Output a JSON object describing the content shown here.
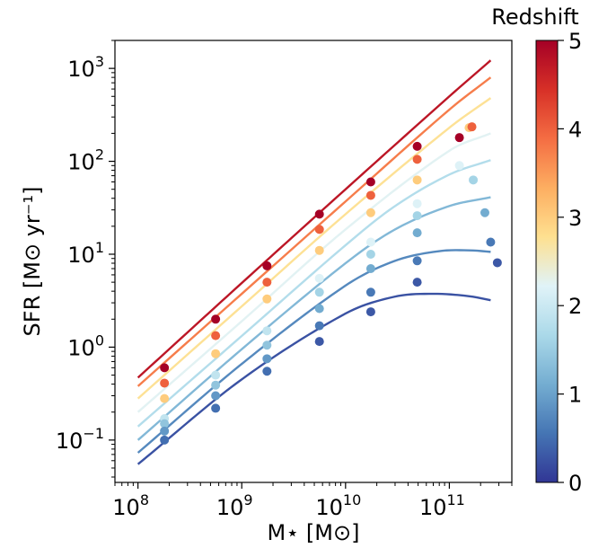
{
  "chart_data": {
    "type": "scatter",
    "xlabel": "M⋆ [M⊙]",
    "ylabel": "SFR [M⊙ yr⁻¹]",
    "x_scale": "log",
    "y_scale": "log",
    "xlim": [
      60000000.0,
      400000000000.0
    ],
    "ylim": [
      0.035,
      2000
    ],
    "x_ticks": [
      {
        "exp": "8",
        "value": 100000000.0
      },
      {
        "exp": "9",
        "value": 1000000000.0
      },
      {
        "exp": "10",
        "value": 10000000000.0
      },
      {
        "exp": "11",
        "value": 100000000000.0
      }
    ],
    "y_ticks": [
      {
        "exp": "−1",
        "value": 0.1
      },
      {
        "exp": "0",
        "value": 1
      },
      {
        "exp": "1",
        "value": 10
      },
      {
        "exp": "2",
        "value": 100
      },
      {
        "exp": "3",
        "value": 1000
      }
    ],
    "grid": false,
    "colorbar": {
      "title": "Redshift",
      "min": 0,
      "max": 5,
      "ticks": [
        "0",
        "1",
        "2",
        "3",
        "4",
        "5"
      ],
      "colormap": [
        "#313695",
        "#4575b4",
        "#74add1",
        "#abd9e9",
        "#e0f3f8",
        "#fee090",
        "#fdae61",
        "#f46d43",
        "#d73027",
        "#a50026"
      ]
    },
    "curves": [
      {
        "z": 0.25,
        "points": [
          [
            100000000.0,
            0.055
          ],
          [
            1000000000.0,
            0.45
          ],
          [
            10000000000.0,
            2.3
          ],
          [
            30000000000.0,
            3.5
          ],
          [
            70000000000.0,
            3.75
          ],
          [
            150000000000.0,
            3.55
          ],
          [
            250000000000.0,
            3.2
          ]
        ]
      },
      {
        "z": 0.75,
        "points": [
          [
            100000000.0,
            0.073
          ],
          [
            1000000000.0,
            0.66
          ],
          [
            10000000000.0,
            4.6
          ],
          [
            30000000000.0,
            8.5
          ],
          [
            80000000000.0,
            10.8
          ],
          [
            160000000000.0,
            11.0
          ],
          [
            250000000000.0,
            10.6
          ]
        ]
      },
      {
        "z": 1.25,
        "points": [
          [
            100000000.0,
            0.1
          ],
          [
            1000000000.0,
            0.95
          ],
          [
            10000000000.0,
            8.0
          ],
          [
            30000000000.0,
            18.5
          ],
          [
            100000000000.0,
            33
          ],
          [
            250000000000.0,
            41
          ]
        ]
      },
      {
        "z": 1.75,
        "points": [
          [
            100000000.0,
            0.14
          ],
          [
            1000000000.0,
            1.32
          ],
          [
            10000000000.0,
            12.5
          ],
          [
            30000000000.0,
            33
          ],
          [
            100000000000.0,
            72
          ],
          [
            250000000000.0,
            103
          ]
        ]
      },
      {
        "z": 2.25,
        "points": [
          [
            100000000.0,
            0.2
          ],
          [
            1000000000.0,
            1.9
          ],
          [
            10000000000.0,
            18.5
          ],
          [
            100000000000.0,
            130
          ],
          [
            250000000000.0,
            200
          ]
        ]
      },
      {
        "z": 2.75,
        "points": [
          [
            100000000.0,
            0.28
          ],
          [
            1000000000.0,
            2.75
          ],
          [
            10000000000.0,
            27
          ],
          [
            100000000000.0,
            230
          ],
          [
            250000000000.0,
            480
          ]
        ]
      },
      {
        "z": 3.75,
        "points": [
          [
            100000000.0,
            0.38
          ],
          [
            1000000000.0,
            3.75
          ],
          [
            10000000000.0,
            37
          ],
          [
            100000000000.0,
            360
          ],
          [
            250000000000.0,
            800
          ]
        ]
      },
      {
        "z": 4.75,
        "points": [
          [
            100000000.0,
            0.47
          ],
          [
            1000000000.0,
            4.9
          ],
          [
            10000000000.0,
            50
          ],
          [
            100000000000.0,
            500
          ],
          [
            250000000000.0,
            1220
          ]
        ]
      }
    ],
    "points": [
      {
        "x": 180000000.0,
        "y": 0.6,
        "z": 5.0
      },
      {
        "x": 180000000.0,
        "y": 0.41,
        "z": 4.0
      },
      {
        "x": 180000000.0,
        "y": 0.28,
        "z": 3.0
      },
      {
        "x": 180000000.0,
        "y": 0.17,
        "z": 1.9
      },
      {
        "x": 180000000.0,
        "y": 0.15,
        "z": 1.4
      },
      {
        "x": 180000000.0,
        "y": 0.125,
        "z": 0.9
      },
      {
        "x": 180000000.0,
        "y": 0.1,
        "z": 0.5
      },
      {
        "x": 560000000.0,
        "y": 2.0,
        "z": 5.0
      },
      {
        "x": 560000000.0,
        "y": 1.33,
        "z": 4.0
      },
      {
        "x": 560000000.0,
        "y": 0.85,
        "z": 3.0
      },
      {
        "x": 560000000.0,
        "y": 0.5,
        "z": 1.9
      },
      {
        "x": 560000000.0,
        "y": 0.39,
        "z": 1.4
      },
      {
        "x": 560000000.0,
        "y": 0.3,
        "z": 0.9
      },
      {
        "x": 560000000.0,
        "y": 0.22,
        "z": 0.5
      },
      {
        "x": 1750000000.0,
        "y": 7.5,
        "z": 5.0
      },
      {
        "x": 1750000000.0,
        "y": 5.0,
        "z": 4.0
      },
      {
        "x": 1750000000.0,
        "y": 3.3,
        "z": 3.0
      },
      {
        "x": 1750000000.0,
        "y": 1.5,
        "z": 1.9
      },
      {
        "x": 1750000000.0,
        "y": 1.05,
        "z": 1.4
      },
      {
        "x": 1750000000.0,
        "y": 0.75,
        "z": 0.9
      },
      {
        "x": 1750000000.0,
        "y": 0.55,
        "z": 0.5
      },
      {
        "x": 5600000000.0,
        "y": 27,
        "z": 5.0
      },
      {
        "x": 5600000000.0,
        "y": 18.5,
        "z": 4.0
      },
      {
        "x": 5600000000.0,
        "y": 11,
        "z": 3.0
      },
      {
        "x": 5600000000.0,
        "y": 5.5,
        "z": 2.2
      },
      {
        "x": 5600000000.0,
        "y": 3.9,
        "z": 1.6
      },
      {
        "x": 5600000000.0,
        "y": 2.6,
        "z": 1.1
      },
      {
        "x": 5600000000.0,
        "y": 1.7,
        "z": 0.6
      },
      {
        "x": 5600000000.0,
        "y": 1.15,
        "z": 0.3
      },
      {
        "x": 17500000000.0,
        "y": 60,
        "z": 5.0
      },
      {
        "x": 17500000000.0,
        "y": 43,
        "z": 4.0
      },
      {
        "x": 17500000000.0,
        "y": 28,
        "z": 3.0
      },
      {
        "x": 17500000000.0,
        "y": 13.5,
        "z": 2.2
      },
      {
        "x": 17500000000.0,
        "y": 10,
        "z": 1.6
      },
      {
        "x": 17500000000.0,
        "y": 7,
        "z": 1.1
      },
      {
        "x": 17500000000.0,
        "y": 3.9,
        "z": 0.6
      },
      {
        "x": 17500000000.0,
        "y": 2.4,
        "z": 0.3
      },
      {
        "x": 49000000000.0,
        "y": 145,
        "z": 5.0
      },
      {
        "x": 49000000000.0,
        "y": 105,
        "z": 4.0
      },
      {
        "x": 49000000000.0,
        "y": 63,
        "z": 3.0
      },
      {
        "x": 49000000000.0,
        "y": 35,
        "z": 2.2
      },
      {
        "x": 49000000000.0,
        "y": 26,
        "z": 1.6
      },
      {
        "x": 49000000000.0,
        "y": 17,
        "z": 1.1
      },
      {
        "x": 49000000000.0,
        "y": 8.5,
        "z": 0.6
      },
      {
        "x": 49000000000.0,
        "y": 5,
        "z": 0.3
      },
      {
        "x": 125000000000.0,
        "y": 180,
        "z": 5.0
      },
      {
        "x": 125000000000.0,
        "y": 90,
        "z": 2.2
      },
      {
        "x": 155000000000.0,
        "y": 230,
        "z": 3.0
      },
      {
        "x": 165000000000.0,
        "y": 235,
        "z": 4.0
      },
      {
        "x": 170000000000.0,
        "y": 63,
        "z": 1.6
      },
      {
        "x": 220000000000.0,
        "y": 28,
        "z": 1.1
      },
      {
        "x": 250000000000.0,
        "y": 13.5,
        "z": 0.6
      },
      {
        "x": 290000000000.0,
        "y": 8.1,
        "z": 0.3
      }
    ]
  }
}
